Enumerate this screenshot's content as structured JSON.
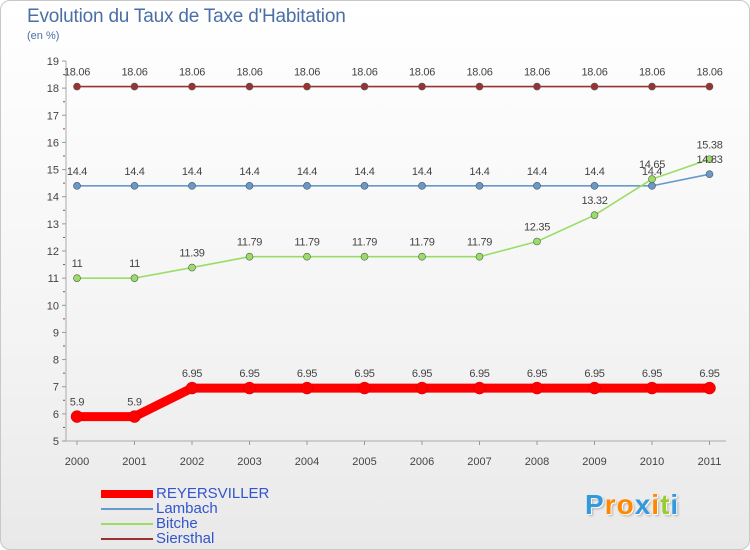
{
  "chart_data": {
    "type": "line",
    "title": "Evolution du Taux de Taxe d'Habitation",
    "ylabel": "(en %)",
    "x": [
      "2000",
      "2001",
      "2002",
      "2003",
      "2004",
      "2005",
      "2006",
      "2007",
      "2008",
      "2009",
      "2010",
      "2011"
    ],
    "ylim": [
      5,
      19
    ],
    "yticks": [
      "5",
      "6",
      "7",
      "8",
      "9",
      "10",
      "11",
      "12",
      "13",
      "14",
      "15",
      "16",
      "17",
      "18",
      "19"
    ],
    "series": [
      {
        "name": "REYERSVILLER",
        "color": "#ff0000",
        "values": [
          5.9,
          5.9,
          6.95,
          6.95,
          6.95,
          6.95,
          6.95,
          6.95,
          6.95,
          6.95,
          6.95,
          6.95
        ],
        "labels": [
          "5.9",
          "5.9",
          "6.95",
          "6.95",
          "6.95",
          "6.95",
          "6.95",
          "6.95",
          "6.95",
          "6.95",
          "6.95",
          "6.95"
        ]
      },
      {
        "name": "Lambach",
        "color": "#6699cc",
        "values": [
          14.4,
          14.4,
          14.4,
          14.4,
          14.4,
          14.4,
          14.4,
          14.4,
          14.4,
          14.4,
          14.4,
          14.83
        ],
        "labels": [
          "14.4",
          "14.4",
          "14.4",
          "14.4",
          "14.4",
          "14.4",
          "14.4",
          "14.4",
          "14.4",
          "14.4",
          "14.4",
          "14.83"
        ]
      },
      {
        "name": "Bitche",
        "color": "#99dd66",
        "values": [
          11,
          11,
          11.39,
          11.79,
          11.79,
          11.79,
          11.79,
          11.79,
          12.35,
          13.32,
          14.65,
          15.38
        ],
        "labels": [
          "11",
          "11",
          "11.39",
          "11.79",
          "11.79",
          "11.79",
          "11.79",
          "11.79",
          "12.35",
          "13.32",
          "14.65",
          "15.38"
        ]
      },
      {
        "name": "Siersthal",
        "color": "#993333",
        "values": [
          18.06,
          18.06,
          18.06,
          18.06,
          18.06,
          18.06,
          18.06,
          18.06,
          18.06,
          18.06,
          18.06,
          18.06
        ],
        "labels": [
          "18.06",
          "18.06",
          "18.06",
          "18.06",
          "18.06",
          "18.06",
          "18.06",
          "18.06",
          "18.06",
          "18.06",
          "18.06",
          "18.06"
        ]
      }
    ]
  },
  "logo": {
    "letters": [
      "P",
      "r",
      "o",
      "x",
      "i",
      "t",
      "i"
    ],
    "colors": [
      "#3399dd",
      "#ff8800",
      "#ff8800",
      "#3399dd",
      "#ff8800",
      "#99cc33",
      "#3399dd"
    ]
  }
}
